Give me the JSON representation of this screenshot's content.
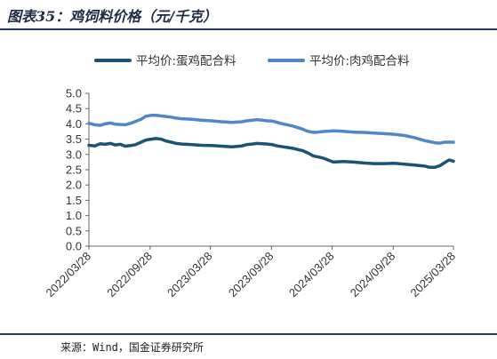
{
  "figure": {
    "title": "图表35：鸡饲料价格（元/千克）",
    "source": "来源：Wind，国金证券研究所"
  },
  "colors": {
    "series1": "#1b5373",
    "series2": "#4f87c7",
    "title_rule": "#1f3864",
    "axis": "#666666"
  },
  "chart_data": {
    "type": "line",
    "title": "",
    "xlabel": "",
    "ylabel": "",
    "ylim": [
      0,
      5
    ],
    "yticks": [
      "0.0",
      "0.5",
      "1.0",
      "1.5",
      "2.0",
      "2.5",
      "3.0",
      "3.5",
      "4.0",
      "4.5",
      "5.0"
    ],
    "xlim": [
      "2022-03-28",
      "2025-03-28"
    ],
    "xticks": [
      "2022/03/28",
      "2022/09/28",
      "2023/03/28",
      "2023/09/28",
      "2024/03/28",
      "2024/09/28",
      "2025/03/28"
    ],
    "grid": false,
    "legend_position": "top",
    "series": [
      {
        "name": "平均价:蛋鸡配合料",
        "x": [
          "2022-03-28",
          "2022-04-15",
          "2022-05-01",
          "2022-05-15",
          "2022-06-01",
          "2022-06-15",
          "2022-07-01",
          "2022-07-15",
          "2022-08-01",
          "2022-08-15",
          "2022-09-01",
          "2022-09-15",
          "2022-10-01",
          "2022-10-15",
          "2022-11-01",
          "2022-11-15",
          "2022-12-01",
          "2022-12-15",
          "2023-01-01",
          "2023-01-15",
          "2023-02-01",
          "2023-03-01",
          "2023-04-01",
          "2023-05-01",
          "2023-06-01",
          "2023-07-01",
          "2023-07-15",
          "2023-08-01",
          "2023-08-15",
          "2023-09-01",
          "2023-09-15",
          "2023-10-01",
          "2023-10-15",
          "2023-11-01",
          "2023-12-01",
          "2024-01-01",
          "2024-01-15",
          "2024-02-01",
          "2024-02-15",
          "2024-03-01",
          "2024-04-01",
          "2024-05-01",
          "2024-06-01",
          "2024-07-01",
          "2024-08-01",
          "2024-09-01",
          "2024-10-01",
          "2024-11-01",
          "2024-12-01",
          "2025-01-01",
          "2025-01-15",
          "2025-02-01",
          "2025-02-15",
          "2025-03-01",
          "2025-03-15",
          "2025-03-28"
        ],
        "values": [
          3.3,
          3.28,
          3.35,
          3.33,
          3.36,
          3.31,
          3.33,
          3.27,
          3.29,
          3.32,
          3.4,
          3.47,
          3.5,
          3.52,
          3.5,
          3.44,
          3.4,
          3.36,
          3.34,
          3.33,
          3.32,
          3.3,
          3.29,
          3.27,
          3.25,
          3.28,
          3.32,
          3.34,
          3.36,
          3.35,
          3.34,
          3.32,
          3.28,
          3.25,
          3.2,
          3.12,
          3.05,
          2.95,
          2.92,
          2.88,
          2.75,
          2.77,
          2.75,
          2.72,
          2.7,
          2.7,
          2.71,
          2.68,
          2.65,
          2.62,
          2.58,
          2.58,
          2.63,
          2.73,
          2.82,
          2.78
        ]
      },
      {
        "name": "平均价:肉鸡配合料",
        "x": [
          "2022-03-28",
          "2022-04-15",
          "2022-05-01",
          "2022-05-15",
          "2022-06-01",
          "2022-06-15",
          "2022-07-01",
          "2022-07-15",
          "2022-08-01",
          "2022-08-15",
          "2022-09-01",
          "2022-09-15",
          "2022-10-01",
          "2022-10-15",
          "2022-11-01",
          "2022-11-15",
          "2022-12-01",
          "2022-12-15",
          "2023-01-01",
          "2023-01-15",
          "2023-02-01",
          "2023-03-01",
          "2023-04-01",
          "2023-05-01",
          "2023-06-01",
          "2023-07-01",
          "2023-07-15",
          "2023-08-01",
          "2023-08-15",
          "2023-09-01",
          "2023-09-15",
          "2023-10-01",
          "2023-10-15",
          "2023-11-01",
          "2023-12-01",
          "2024-01-01",
          "2024-01-15",
          "2024-02-01",
          "2024-02-15",
          "2024-03-01",
          "2024-04-01",
          "2024-05-01",
          "2024-06-01",
          "2024-07-01",
          "2024-08-01",
          "2024-09-01",
          "2024-10-01",
          "2024-11-01",
          "2024-12-01",
          "2025-01-01",
          "2025-01-15",
          "2025-02-01",
          "2025-02-15",
          "2025-03-01",
          "2025-03-15",
          "2025-03-28"
        ],
        "values": [
          4.02,
          3.97,
          3.95,
          4.0,
          4.03,
          3.99,
          3.98,
          3.97,
          4.02,
          4.08,
          4.15,
          4.25,
          4.28,
          4.28,
          4.26,
          4.24,
          4.22,
          4.19,
          4.17,
          4.16,
          4.15,
          4.12,
          4.1,
          4.07,
          4.05,
          4.07,
          4.1,
          4.12,
          4.14,
          4.12,
          4.1,
          4.09,
          4.05,
          4.0,
          3.93,
          3.82,
          3.76,
          3.72,
          3.73,
          3.75,
          3.77,
          3.76,
          3.73,
          3.72,
          3.7,
          3.68,
          3.66,
          3.62,
          3.55,
          3.45,
          3.42,
          3.38,
          3.37,
          3.4,
          3.4,
          3.4
        ]
      }
    ]
  }
}
